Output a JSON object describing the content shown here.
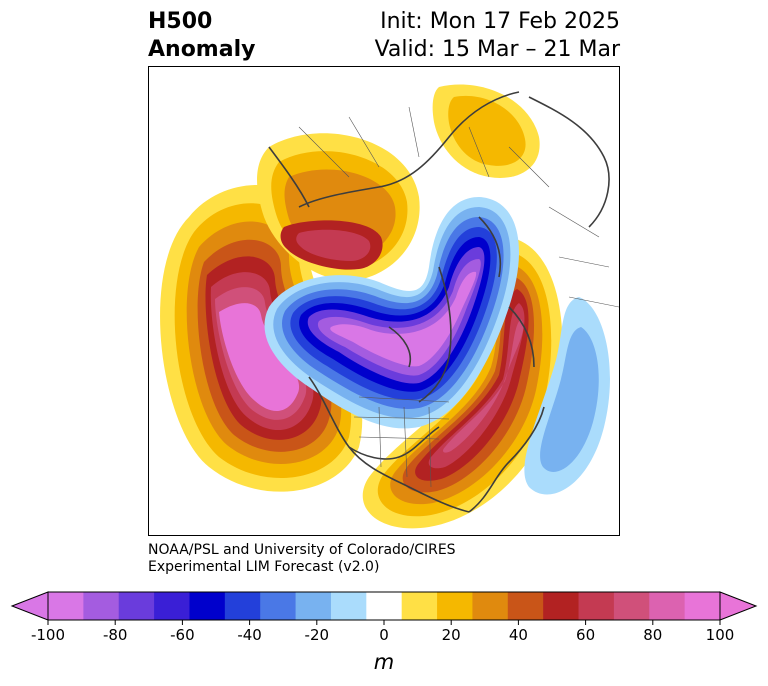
{
  "title": {
    "left_line1": "H500",
    "left_line2": "Anomaly",
    "right_line1": "Init: Mon 17 Feb 2025",
    "right_line2": "Valid: 15 Mar – 21 Mar"
  },
  "credit": {
    "line1": "NOAA/PSL and University of Colorado/CIRES",
    "line2": "Experimental LIM Forecast (v2.0)"
  },
  "colorbar": {
    "unit": "m",
    "ticks": [
      "-100",
      "-80",
      "-60",
      "-40",
      "-20",
      "0",
      "20",
      "40",
      "60",
      "80",
      "100"
    ],
    "extend": "both",
    "colors": [
      "#d977e6",
      "#a45ce0",
      "#6a3cdc",
      "#3a1fd6",
      "#0000cc",
      "#2340da",
      "#4a78e6",
      "#78b2f0",
      "#aadcfc",
      "#ffffff",
      "#ffe045",
      "#f5b800",
      "#e08a0e",
      "#c95518",
      "#b22222",
      "#c43a52",
      "#d0507a",
      "#dc62b0",
      "#e874d8"
    ],
    "under_color": "#d977e6",
    "over_color": "#e874d8"
  }
}
